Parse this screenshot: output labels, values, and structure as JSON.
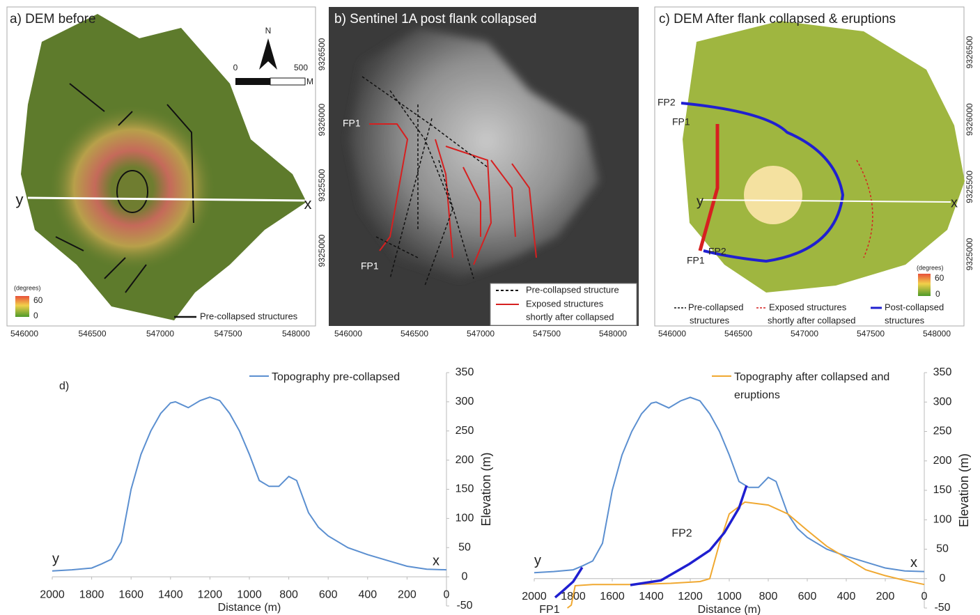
{
  "maps": [
    {
      "title": "a) DEM before",
      "north": "N",
      "scale": [
        "0",
        "500",
        "M"
      ],
      "slope_legend": {
        "unit": "(degrees)",
        "max": 60,
        "min": 0
      },
      "legend": "Pre-collapsed structures",
      "profile": [
        "y",
        "x"
      ],
      "eastings": [
        546000,
        546500,
        547000,
        547500,
        548000
      ]
    },
    {
      "title": "b) Sentinel 1A post flank collapsed",
      "labels": [
        "FP1",
        "FP1"
      ],
      "legend": [
        [
          "Pre-collapsed structure"
        ],
        [
          "Exposed structures",
          "shortly after collapsed"
        ]
      ],
      "eastings": [
        546000,
        546500,
        547000,
        547500,
        548000
      ],
      "northings": [
        9326500,
        9326000,
        9325500,
        9325000
      ]
    },
    {
      "title": "c) DEM After flank collapsed & eruptions",
      "labels": [
        "FP2",
        "FP1",
        "FP1",
        "FP2"
      ],
      "profile": [
        "y",
        "x"
      ],
      "slope_legend": {
        "unit": "(degrees)",
        "max": 60,
        "min": 0
      },
      "legend": [
        [
          "Pre-collapsed",
          "structures"
        ],
        [
          "Exposed structures",
          "shortly after collapsed"
        ],
        [
          "Post-collapsed",
          "structures"
        ]
      ],
      "eastings": [
        546000,
        546500,
        547000,
        547500,
        548000
      ],
      "northings": [
        9326500,
        9326000,
        9325500,
        9325000
      ]
    }
  ],
  "chart_data": [
    {
      "type": "line",
      "panel_label": "d)",
      "x_label": "Distance (m)",
      "y_label": "Elevation (m)",
      "end_labels": [
        "y",
        "x"
      ],
      "xlim": [
        2000,
        0
      ],
      "ylim": [
        -50,
        350
      ],
      "xticks": [
        2000,
        1800,
        1600,
        1400,
        1200,
        1000,
        800,
        600,
        400,
        200,
        0
      ],
      "yticks": [
        -50,
        0,
        50,
        100,
        150,
        200,
        250,
        300,
        350
      ],
      "series": [
        {
          "name": "Topography pre-collapsed",
          "color": "#5b8fd0",
          "x": [
            2000,
            1900,
            1800,
            1750,
            1700,
            1650,
            1600,
            1550,
            1500,
            1450,
            1400,
            1375,
            1310,
            1250,
            1200,
            1150,
            1100,
            1050,
            1000,
            950,
            900,
            850,
            800,
            760,
            700,
            650,
            600,
            500,
            400,
            300,
            200,
            100,
            0
          ],
          "values": [
            10,
            12,
            15,
            22,
            30,
            60,
            150,
            210,
            250,
            280,
            298,
            300,
            290,
            302,
            308,
            302,
            280,
            250,
            210,
            165,
            155,
            155,
            172,
            165,
            110,
            85,
            70,
            50,
            38,
            28,
            18,
            13,
            12
          ]
        }
      ]
    },
    {
      "type": "line",
      "x_label": "Distance (m)",
      "y_label": "Elevation (m)",
      "end_labels": [
        "y",
        "x"
      ],
      "xlim": [
        2000,
        0
      ],
      "ylim": [
        -50,
        350
      ],
      "xticks": [
        2000,
        1800,
        1600,
        1400,
        1200,
        1000,
        800,
        600,
        400,
        200,
        0
      ],
      "yticks": [
        -50,
        0,
        50,
        100,
        150,
        200,
        250,
        300,
        350
      ],
      "series": [
        {
          "color": "#5b8fd0",
          "x": [
            2000,
            1900,
            1800,
            1750,
            1700,
            1650,
            1600,
            1550,
            1500,
            1450,
            1400,
            1375,
            1310,
            1250,
            1200,
            1150,
            1100,
            1050,
            1000,
            950,
            900,
            850,
            800,
            760,
            700,
            650,
            600,
            500,
            400,
            300,
            200,
            100,
            0
          ],
          "values": [
            10,
            12,
            15,
            22,
            30,
            60,
            150,
            210,
            250,
            280,
            298,
            300,
            290,
            302,
            308,
            302,
            280,
            250,
            210,
            165,
            155,
            155,
            172,
            165,
            110,
            85,
            70,
            50,
            38,
            28,
            18,
            13,
            12
          ]
        },
        {
          "name": "Topography after collapsed and eruptions",
          "color": "#f0a830",
          "x": [
            1830,
            1810,
            1790,
            1700,
            1500,
            1300,
            1150,
            1100,
            1050,
            1000,
            920,
            800,
            700,
            600,
            500,
            400,
            300,
            200,
            100,
            0
          ],
          "values": [
            -50,
            -45,
            -12,
            -10,
            -10,
            -8,
            -5,
            0,
            60,
            110,
            130,
            125,
            110,
            82,
            55,
            35,
            15,
            5,
            -3,
            -10
          ]
        }
      ],
      "faults": [
        {
          "label": "FP1",
          "color": "#1f1fd0",
          "x": [
            1893,
            1850,
            1800,
            1754
          ],
          "y": [
            -32,
            -20,
            -5,
            19
          ]
        },
        {
          "label": "FP2",
          "color": "#1f1fd0",
          "x": [
            1507,
            1350,
            1204,
            1100,
            1025,
            950,
            911
          ],
          "y": [
            -11,
            -3,
            25,
            48,
            78,
            120,
            158
          ]
        }
      ]
    }
  ]
}
